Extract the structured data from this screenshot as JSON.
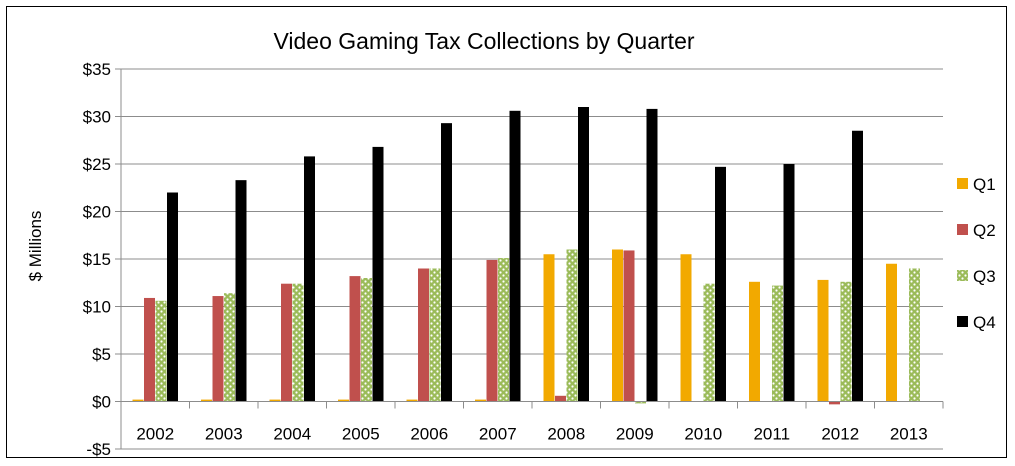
{
  "chart_data": {
    "type": "bar",
    "title": "Video Gaming Tax Collections by Quarter",
    "ylabel": "$ Millions",
    "xlabel": "",
    "ylim": [
      -5,
      35
    ],
    "yticks": [
      -5,
      0,
      5,
      10,
      15,
      20,
      25,
      30,
      35
    ],
    "ytick_labels": [
      "-$5",
      "$0",
      "$5",
      "$10",
      "$15",
      "$20",
      "$25",
      "$30",
      "$35"
    ],
    "categories": [
      "2002",
      "2003",
      "2004",
      "2005",
      "2006",
      "2007",
      "2008",
      "2009",
      "2010",
      "2011",
      "2012",
      "2013"
    ],
    "grid": true,
    "legend_position": "right",
    "series": [
      {
        "name": "Q1",
        "color": "#F2A900",
        "pattern": "solid",
        "values": [
          0.2,
          0.2,
          0.2,
          0.2,
          0.2,
          0.2,
          15.5,
          16.0,
          15.5,
          12.6,
          12.8,
          14.5
        ]
      },
      {
        "name": "Q2",
        "color": "#C0504D",
        "pattern": "solid",
        "values": [
          10.9,
          11.1,
          12.4,
          13.2,
          14.0,
          14.9,
          0.6,
          15.9,
          0.0,
          0.0,
          -0.3,
          0.0
        ]
      },
      {
        "name": "Q3",
        "color": "#9BBB59",
        "pattern": "dotted",
        "values": [
          10.6,
          11.4,
          12.4,
          13.0,
          14.0,
          15.1,
          16.0,
          -0.2,
          12.4,
          12.2,
          12.6,
          14.0
        ]
      },
      {
        "name": "Q4",
        "color": "#000000",
        "pattern": "solid",
        "values": [
          22.0,
          23.3,
          25.8,
          26.8,
          29.3,
          30.6,
          31.0,
          30.8,
          24.7,
          25.0,
          28.5,
          0.0
        ]
      }
    ]
  }
}
